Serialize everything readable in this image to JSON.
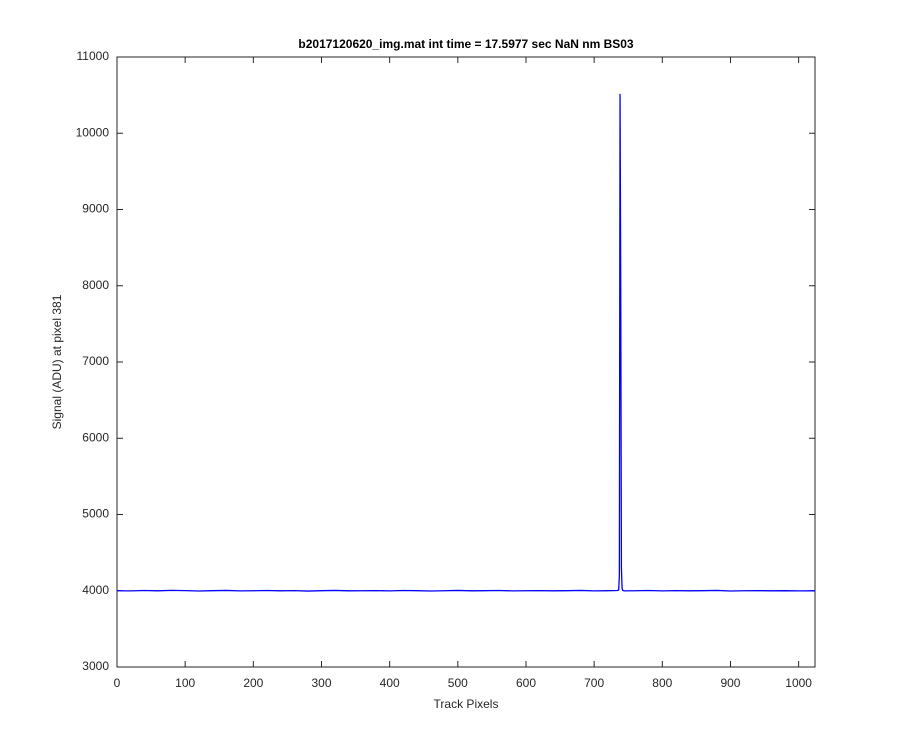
{
  "chart_data": {
    "type": "line",
    "title": "b2017120620_img.mat int time = 17.5977 sec  NaN nm BS03",
    "x_label": "Track Pixels",
    "y_label": "Signal (ADU) at pixel 381",
    "xlim": [
      0,
      1024
    ],
    "ylim": [
      3000,
      11000
    ],
    "xticks": [
      0,
      100,
      200,
      300,
      400,
      500,
      600,
      700,
      800,
      900,
      1000
    ],
    "yticks": [
      3000,
      4000,
      5000,
      6000,
      7000,
      8000,
      9000,
      10000,
      11000
    ],
    "grid": false,
    "series": [
      {
        "color": "#0000ff",
        "x": [
          0,
          20,
          40,
          60,
          80,
          100,
          120,
          140,
          160,
          180,
          200,
          220,
          240,
          260,
          280,
          300,
          320,
          340,
          360,
          380,
          400,
          420,
          440,
          460,
          480,
          500,
          520,
          540,
          560,
          580,
          600,
          620,
          640,
          660,
          680,
          700,
          720,
          734,
          736,
          737,
          738,
          739,
          740,
          741,
          742,
          744,
          760,
          780,
          800,
          820,
          840,
          860,
          880,
          900,
          920,
          940,
          960,
          980,
          1000,
          1024
        ],
        "values": [
          4000,
          3998,
          4003,
          3999,
          4005,
          4002,
          3997,
          4001,
          4004,
          3998,
          4000,
          4003,
          3999,
          4002,
          3996,
          4001,
          4004,
          3999,
          4000,
          4002,
          3998,
          4003,
          4001,
          3997,
          4000,
          4004,
          3999,
          4001,
          4003,
          3998,
          4000,
          4002,
          3999,
          4001,
          4004,
          3998,
          4001,
          4003,
          4010,
          4200,
          10510,
          8000,
          4300,
          4030,
          4005,
          3998,
          4000,
          4003,
          3998,
          4002,
          3999,
          4001,
          4004,
          3997,
          4000,
          4002,
          3999,
          4001,
          3998,
          3999
        ]
      }
    ]
  }
}
